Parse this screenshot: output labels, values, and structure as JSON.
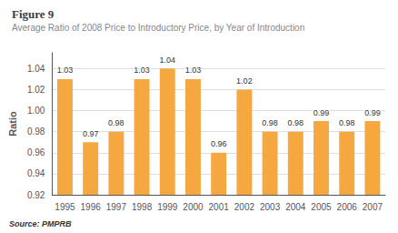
{
  "chart_data": {
    "type": "bar",
    "title": "Figure 9",
    "subtitle": "Average Ratio of 2008 Price to Introductory Price, by Year of Introduction",
    "ylabel": "Ratio",
    "categories": [
      "1995",
      "1996",
      "1997",
      "1998",
      "1999",
      "2000",
      "2001",
      "2002",
      "2003",
      "2004",
      "2005",
      "2006",
      "2007"
    ],
    "values": [
      1.03,
      0.97,
      0.98,
      1.03,
      1.04,
      1.03,
      0.96,
      1.02,
      0.98,
      0.98,
      0.99,
      0.98,
      0.99
    ],
    "color": "#F5A840",
    "ylim": [
      0.92,
      1.055
    ],
    "yticks": [
      0.92,
      0.94,
      0.96,
      0.98,
      {
        "value": 1.0,
        "label": "1.00"
      },
      1.02,
      1.04
    ],
    "grid": true,
    "data_labels": true,
    "annotations": [
      "Source: PMPRB"
    ]
  }
}
